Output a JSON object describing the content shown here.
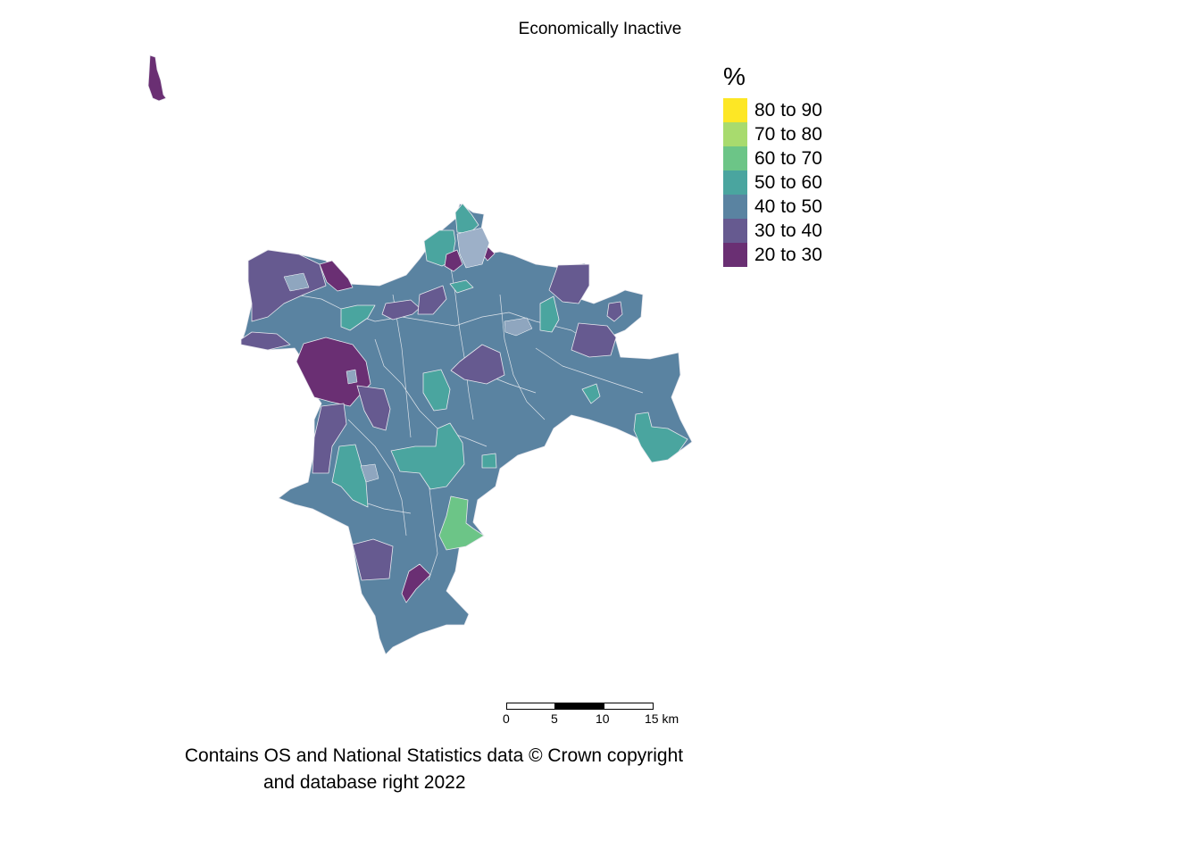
{
  "title": "Economically Inactive",
  "legend": {
    "title": "%",
    "items": [
      {
        "label": "80 to 90",
        "color": "#FDE725"
      },
      {
        "label": "70 to 80",
        "color": "#A8DB6E"
      },
      {
        "label": "60 to 70",
        "color": "#6CC587"
      },
      {
        "label": "50 to 60",
        "color": "#4AA59F"
      },
      {
        "label": "40 to 50",
        "color": "#5A83A1"
      },
      {
        "label": "30 to 40",
        "color": "#665A90"
      },
      {
        "label": "20 to 30",
        "color": "#6A2F73"
      }
    ]
  },
  "scalebar": {
    "ticks": [
      "0",
      "5",
      "10",
      "15 km"
    ]
  },
  "caption": {
    "line1": "Contains OS and National Statistics data © Crown copyright",
    "line2": "and database right 2022"
  }
}
